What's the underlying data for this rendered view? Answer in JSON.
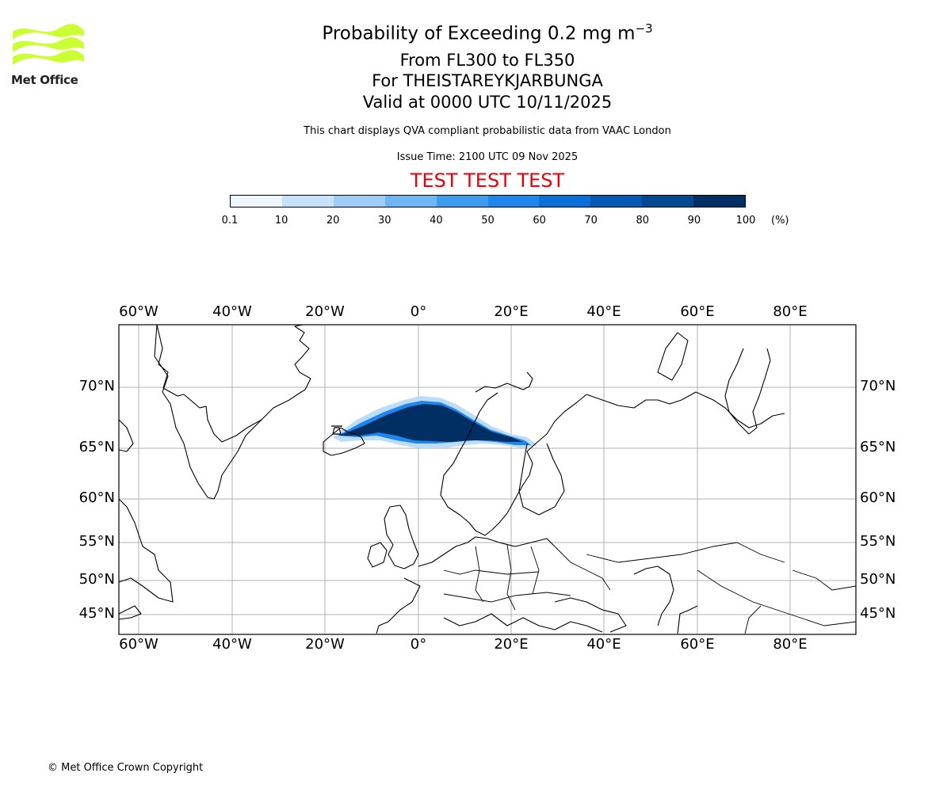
{
  "logo": {
    "text": "Met Office",
    "color": "#ccff33"
  },
  "title": {
    "line1_prefix": "Probability of Exceeding 0.2 mg m",
    "line1_exponent": "−3",
    "line2": "From FL300 to FL350",
    "line3": "For THEISTAREYKJARBUNGA",
    "line4": "Valid at 0000 UTC 10/11/2025",
    "note": "This chart displays QVA compliant probabilistic data from VAAC London",
    "issue_time": "Issue Time: 2100 UTC 09 Nov 2025",
    "test_banner": "TEST TEST TEST"
  },
  "colorbar": {
    "ticks": [
      "0.1",
      "10",
      "20",
      "30",
      "40",
      "50",
      "60",
      "70",
      "80",
      "90",
      "100"
    ],
    "unit": "(%)",
    "colors": [
      "#eef6ff",
      "#c7e2fb",
      "#9fcdf7",
      "#6fb5f3",
      "#3d9cf0",
      "#1f86ec",
      "#0a6fd6",
      "#0559b4",
      "#034891",
      "#022f63"
    ]
  },
  "map": {
    "lon_labels": [
      "60°W",
      "40°W",
      "20°W",
      "0°",
      "20°E",
      "40°E",
      "60°E",
      "80°E"
    ],
    "lat_labels": [
      "70°N",
      "65°N",
      "60°N",
      "55°N",
      "50°N",
      "45°N"
    ],
    "plume_color": "#022f63",
    "halo_color": "#bcdcfa",
    "grid_color": "#b0b0b0"
  },
  "footer": {
    "copyright": "© Met Office Crown Copyright"
  }
}
